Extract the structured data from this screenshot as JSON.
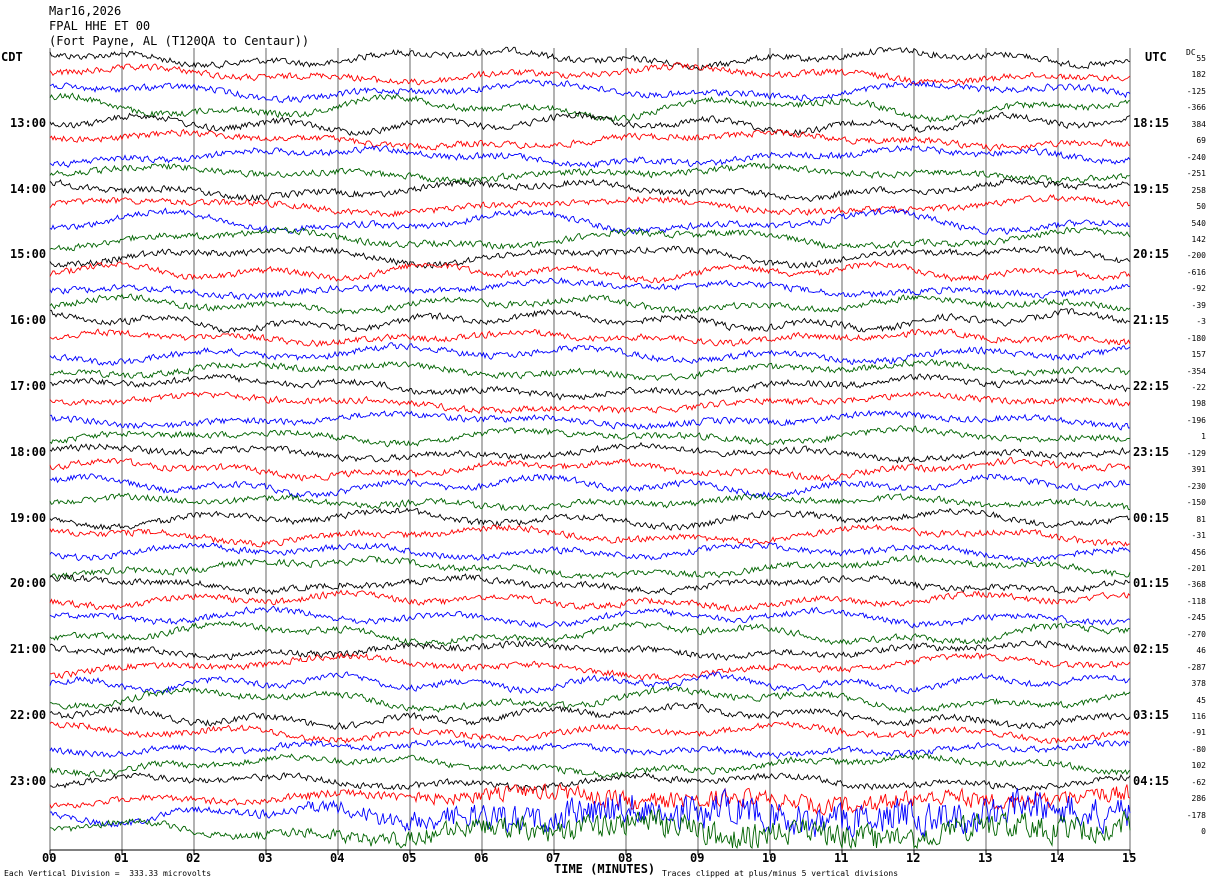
{
  "header": {
    "date": "Mar16,2026",
    "station": "FPAL HHE ET 00",
    "location": "(Fort Payne, AL (T120QA to Centaur))"
  },
  "chart_data": {
    "type": "line",
    "subtype": "helicorder",
    "left_axis_label": "CDT",
    "right_axis_label": "UTC",
    "dc_label": "DC",
    "xlabel": "TIME (MINUTES)",
    "x_ticks": [
      "00",
      "01",
      "02",
      "03",
      "04",
      "05",
      "06",
      "07",
      "08",
      "09",
      "10",
      "11",
      "12",
      "13",
      "14",
      "15"
    ],
    "xlim": [
      0,
      15
    ],
    "left_hour_labels": [
      "13:00",
      "14:00",
      "15:00",
      "16:00",
      "17:00",
      "18:00",
      "19:00",
      "20:00",
      "21:00",
      "22:00",
      "23:00"
    ],
    "right_hour_labels": [
      "18:15",
      "19:15",
      "20:15",
      "21:15",
      "22:15",
      "23:15",
      "00:15",
      "01:15",
      "02:15",
      "03:15",
      "04:15"
    ],
    "lines_per_hour": 4,
    "trace_colors": [
      "#000000",
      "#ff0000",
      "#0000ff",
      "#006400"
    ],
    "dc_offsets": [
      55,
      182,
      -125,
      -366,
      384,
      69,
      -240,
      -251,
      258,
      50,
      540,
      142,
      -200,
      -616,
      -92,
      -39,
      -3,
      -180,
      157,
      -354,
      -22,
      198,
      -196,
      1,
      -129,
      391,
      -230,
      -150,
      81,
      -31,
      456,
      -201,
      -368,
      -118,
      -245,
      -270,
      46,
      -287,
      378,
      45,
      116,
      -91,
      -80,
      102,
      -62,
      286,
      -178,
      0
    ],
    "footer_left": "Each Vertical Division =  333.33 microvolts",
    "footer_right": "Traces clipped at plus/minus 5 vertical divisions"
  }
}
